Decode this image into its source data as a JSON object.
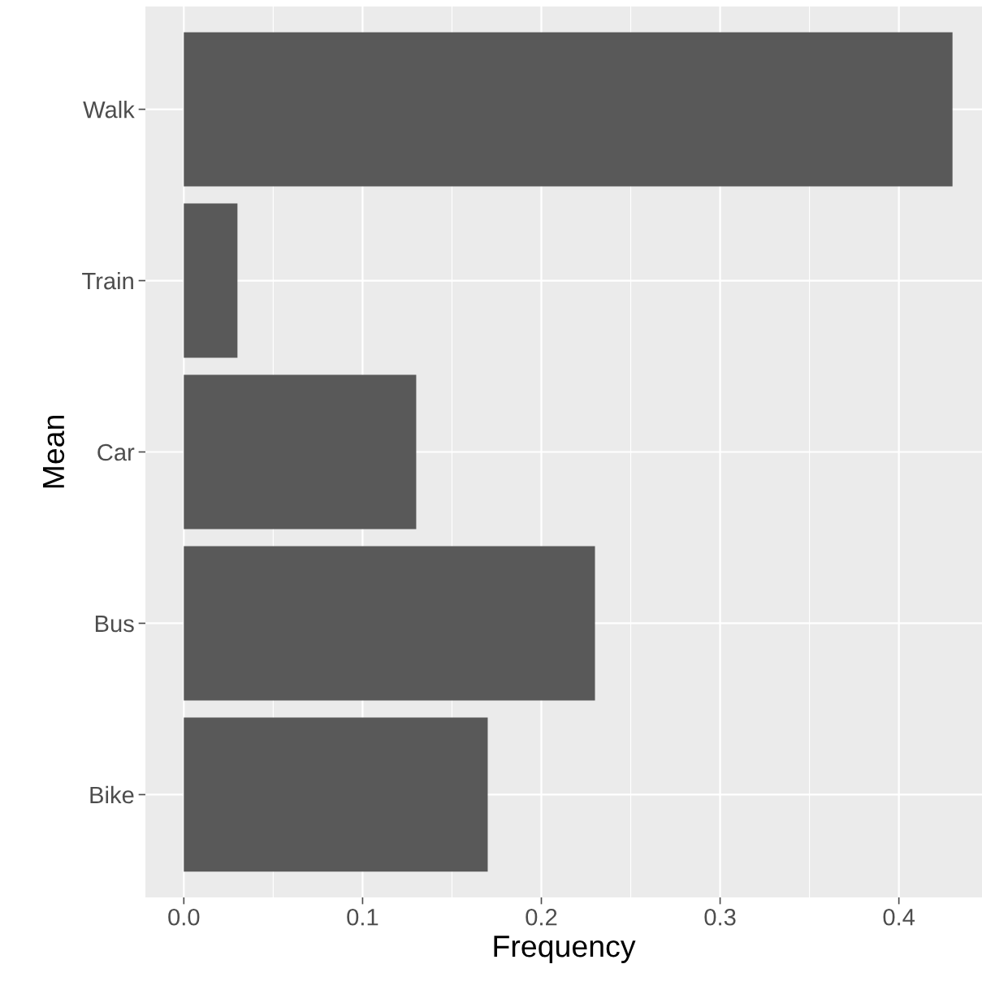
{
  "chart_data": {
    "type": "bar",
    "orientation": "horizontal",
    "xlabel": "Frequency",
    "ylabel": "Mean",
    "categories": [
      "Walk",
      "Train",
      "Car",
      "Bus",
      "Bike"
    ],
    "values": [
      0.43,
      0.03,
      0.13,
      0.23,
      0.17
    ],
    "color": "#595959",
    "xlim": [
      -0.0215,
      0.4465
    ],
    "xticks": [
      {
        "value": 0,
        "label": "0.0"
      },
      0.1,
      0.2,
      0.3,
      0.4
    ],
    "grid": true
  }
}
